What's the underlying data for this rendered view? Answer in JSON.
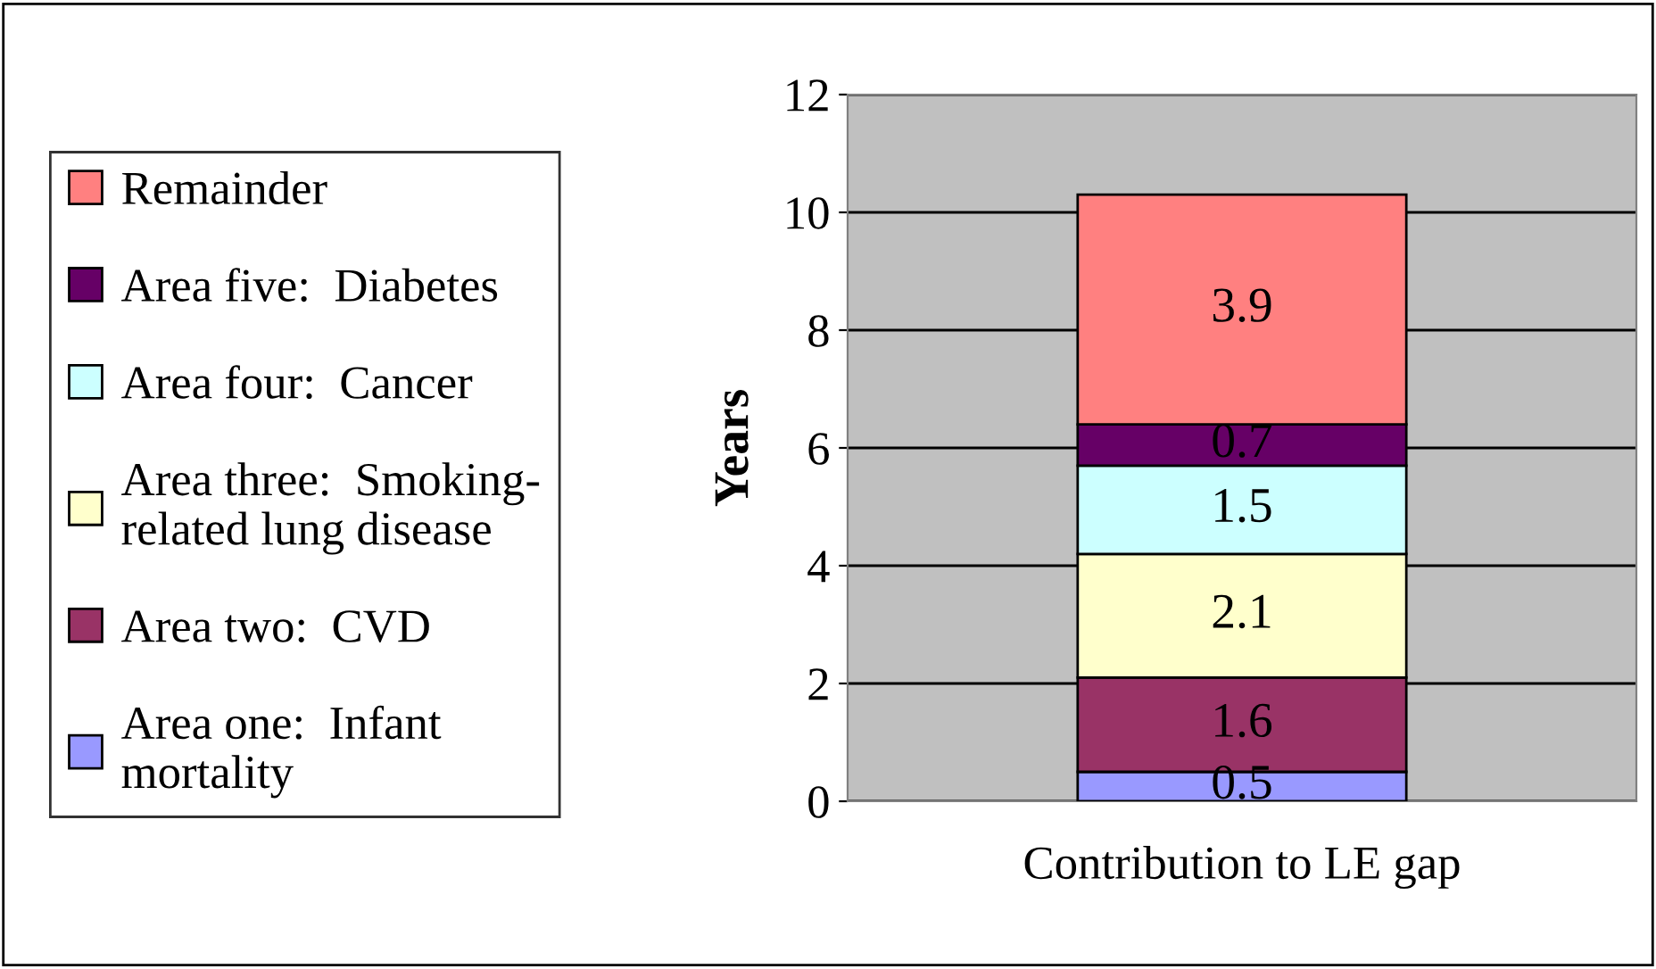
{
  "chart_data": {
    "type": "bar",
    "stacked": true,
    "ylabel": "Years",
    "categories": [
      "Contribution to LE gap"
    ],
    "series": [
      {
        "name": "Area one:  Infant\nmortality",
        "color": "#9999ff",
        "values": [
          0.5
        ]
      },
      {
        "name": "Area two:  CVD",
        "color": "#993366",
        "values": [
          1.6
        ]
      },
      {
        "name": "Area three:  Smoking-\nrelated lung disease",
        "color": "#ffffcc",
        "values": [
          2.1
        ]
      },
      {
        "name": "Area four:  Cancer",
        "color": "#ccffff",
        "values": [
          1.5
        ]
      },
      {
        "name": "Area five:  Diabetes",
        "color": "#660066",
        "values": [
          0.7
        ]
      },
      {
        "name": "Remainder",
        "color": "#ff8080",
        "values": [
          3.9
        ]
      }
    ],
    "ylim": [
      0,
      12
    ],
    "yticks": [
      0,
      2,
      4,
      6,
      8,
      10,
      12
    ],
    "grid": "y",
    "legend": "left",
    "data_labels": true
  }
}
